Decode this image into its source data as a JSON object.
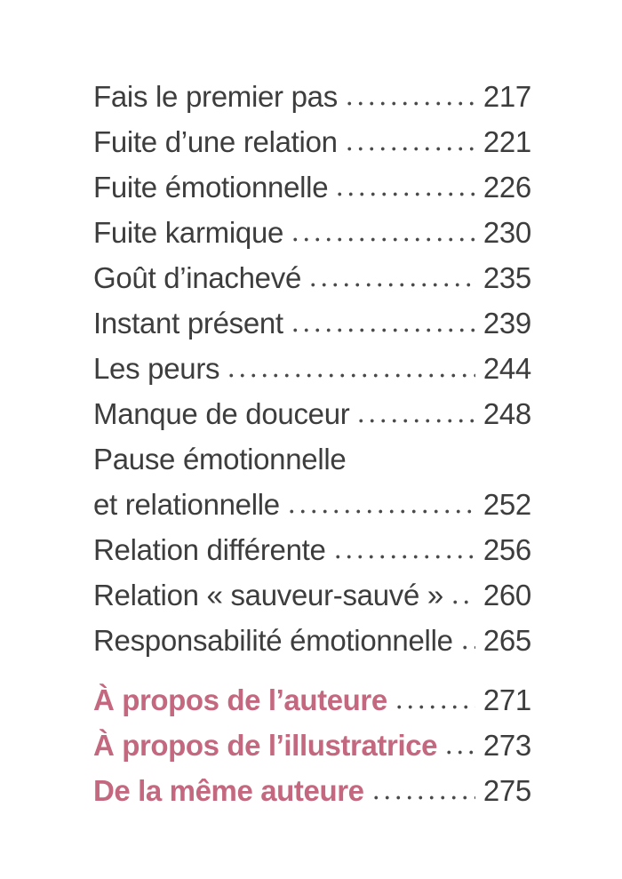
{
  "page": {
    "type": "book-table-of-contents",
    "language": "fr"
  },
  "colors": {
    "background": "#ffffff",
    "text": "#3d3d3d",
    "accent": "#c4687f",
    "dots": "#4a4a4a"
  },
  "toc": {
    "chapters": [
      {
        "title": "Fais le premier pas",
        "page": "217"
      },
      {
        "title": "Fuite d’une relation",
        "page": "221"
      },
      {
        "title": "Fuite émotionnelle",
        "page": "226"
      },
      {
        "title": "Fuite karmique",
        "page": "230"
      },
      {
        "title": "Goût d’inachevé",
        "page": "235"
      },
      {
        "title": "Instant présent",
        "page": "239"
      },
      {
        "title": "Les peurs",
        "page": "244"
      },
      {
        "title": "Manque de douceur",
        "page": "248"
      },
      {
        "title_line1": "Pause émotionnelle",
        "title_line2": "et relationnelle",
        "page": "252"
      },
      {
        "title": "Relation différente",
        "page": "256"
      },
      {
        "title": "Relation « sauveur-sauvé »",
        "page": "260"
      },
      {
        "title": "Responsabilité émotionnelle",
        "page": "265"
      }
    ],
    "backmatter": [
      {
        "title": "À propos de l’auteure",
        "page": "271"
      },
      {
        "title": "À propos de l’illustratrice",
        "page": "273"
      },
      {
        "title": "De la même auteure",
        "page": "275"
      }
    ]
  }
}
